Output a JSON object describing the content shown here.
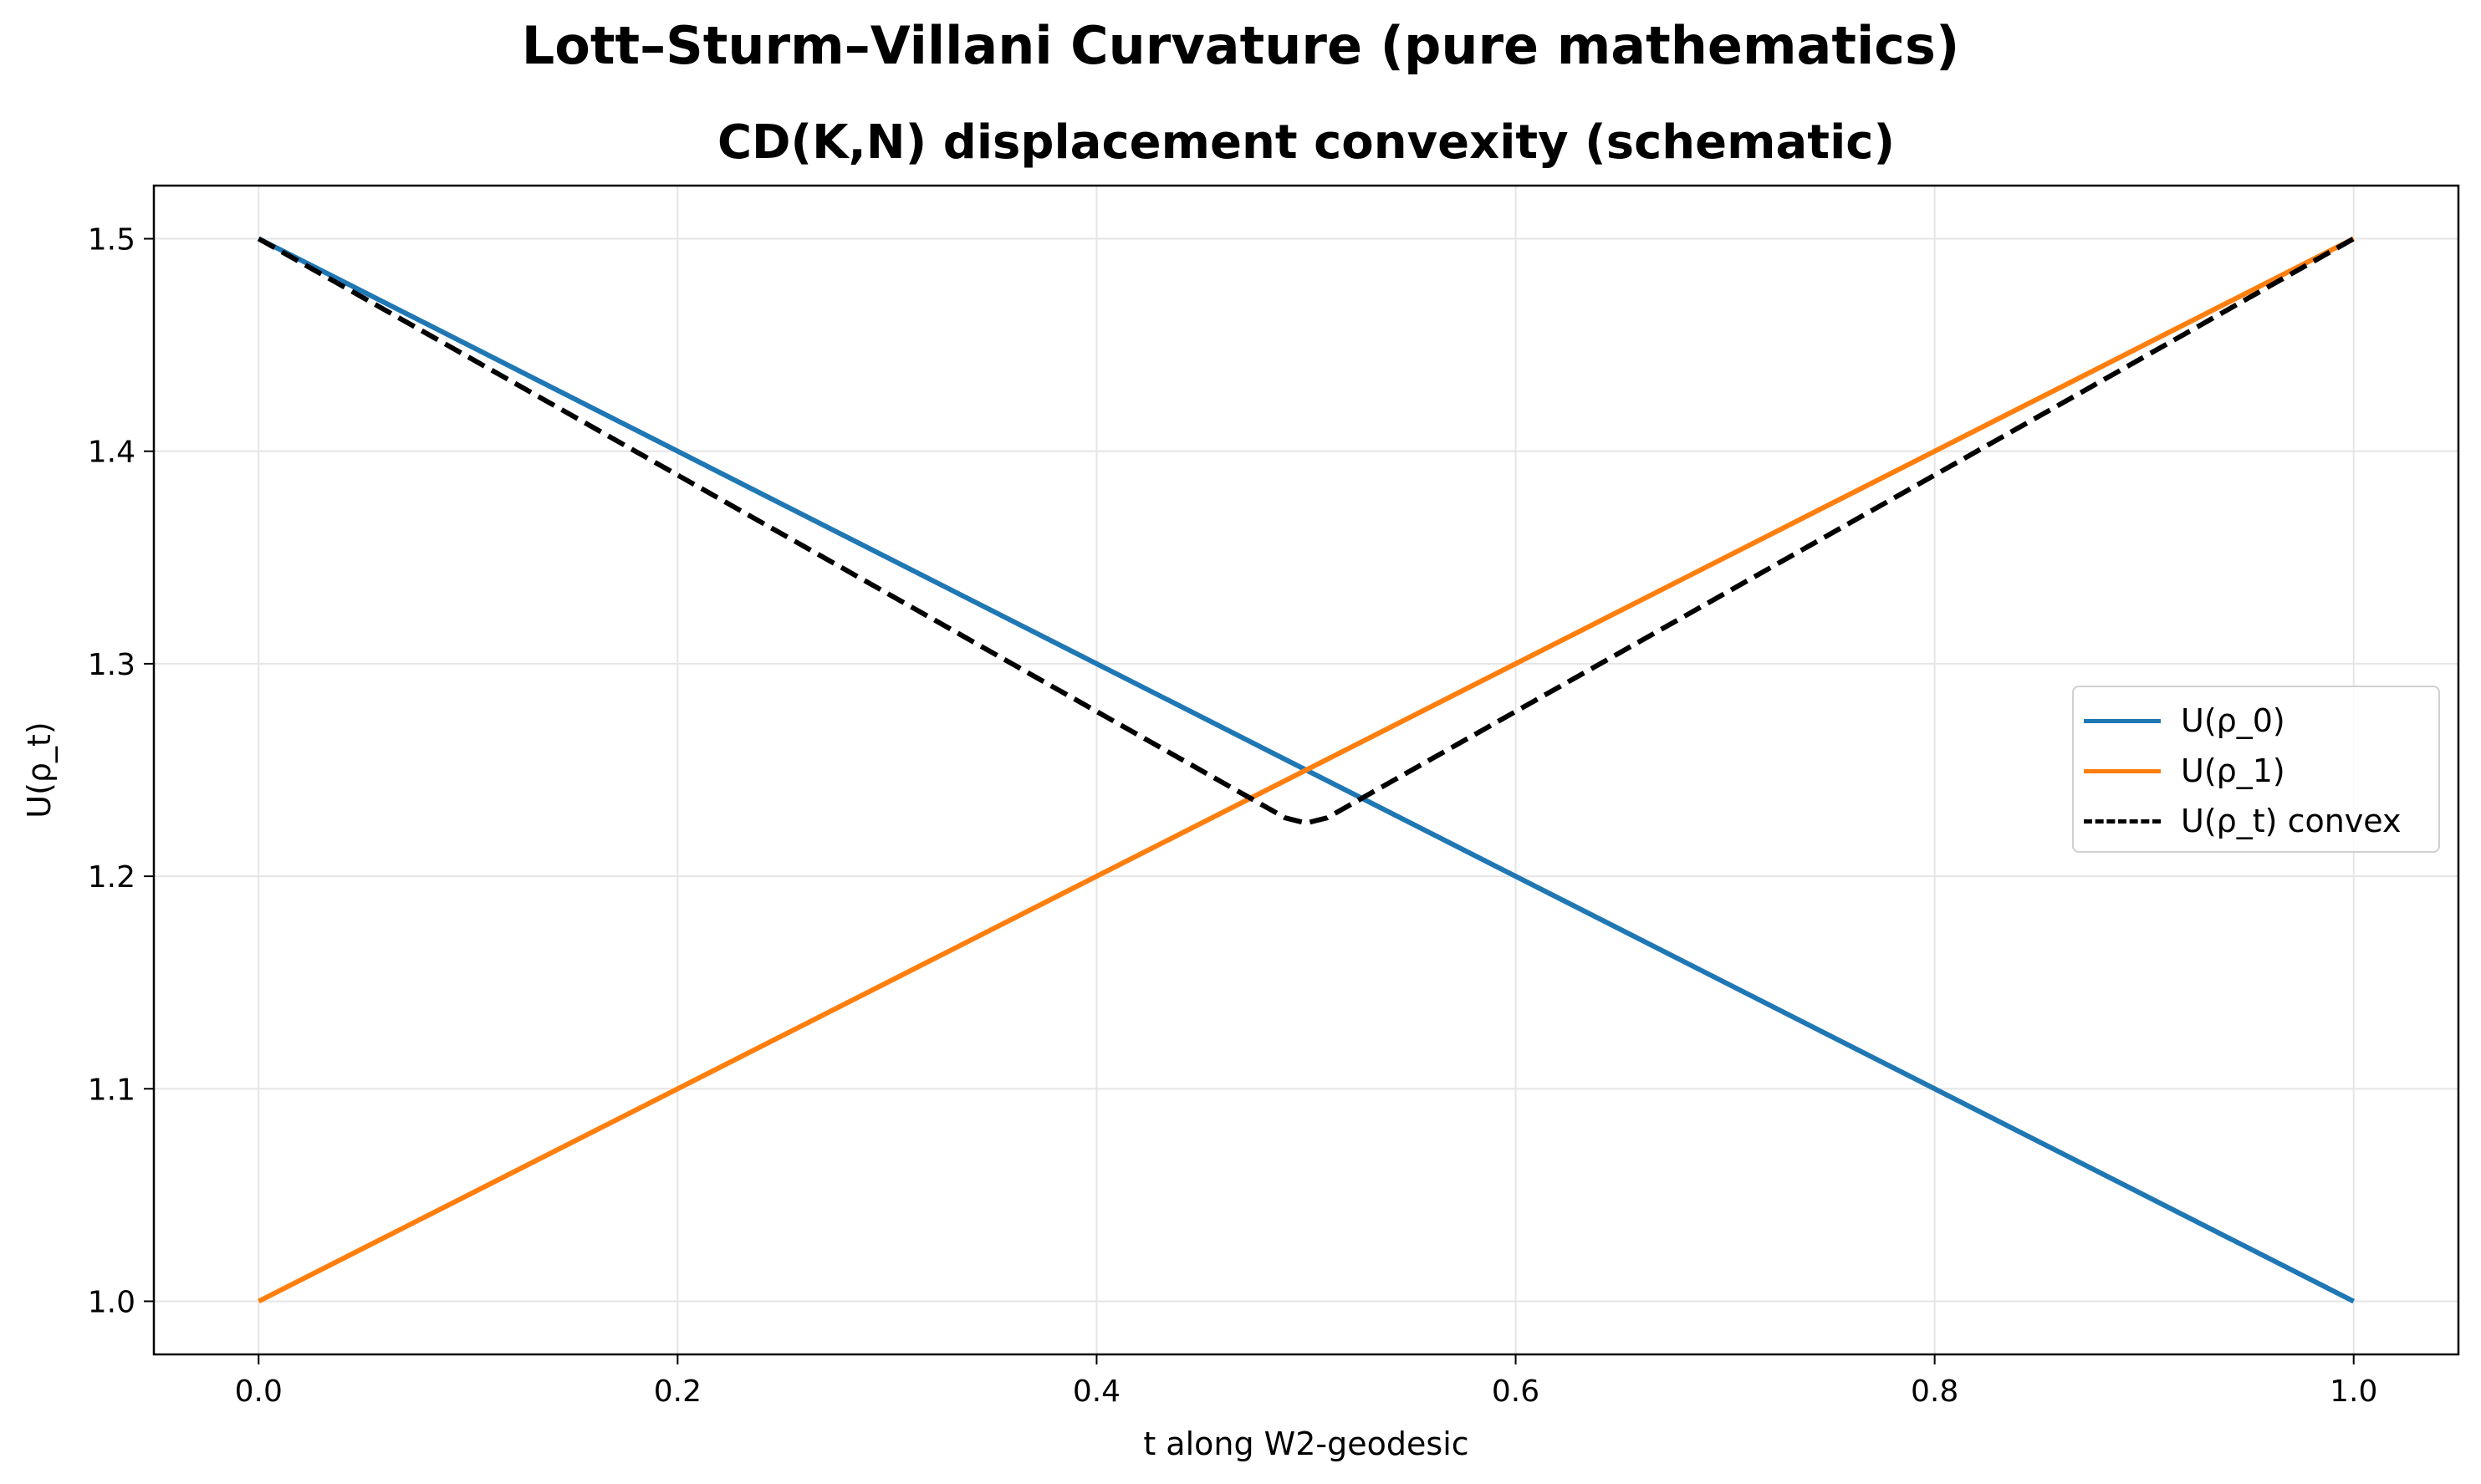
{
  "figure": {
    "suptitle": "Lott–Sturm–Villani Curvature (pure mathematics)"
  },
  "chart_data": {
    "type": "line",
    "title": "CD(K,N) displacement convexity (schematic)",
    "xlabel": "t along W2-geodesic",
    "ylabel": "U(ρ_t)",
    "xlim": [
      -0.05,
      1.05
    ],
    "ylim": [
      0.975,
      1.525
    ],
    "xticks": [
      0.0,
      0.2,
      0.4,
      0.6,
      0.8,
      1.0
    ],
    "xtick_labels": [
      "0.0",
      "0.2",
      "0.4",
      "0.6",
      "0.8",
      "1.0"
    ],
    "yticks": [
      1.0,
      1.1,
      1.2,
      1.3,
      1.4,
      1.5
    ],
    "ytick_labels": [
      "1.0",
      "1.1",
      "1.2",
      "1.3",
      "1.4",
      "1.5"
    ],
    "grid": true,
    "legend_position": "center-right",
    "series": [
      {
        "name": "U(ρ_0)",
        "color": "#1f77b4",
        "style": "solid",
        "x": [
          0.0,
          1.0
        ],
        "y": [
          1.5,
          1.0
        ]
      },
      {
        "name": "U(ρ_1)",
        "color": "#ff7f0e",
        "style": "solid",
        "x": [
          0.0,
          1.0
        ],
        "y": [
          1.0,
          1.5
        ]
      },
      {
        "name": "U(ρ_t) convex",
        "color": "#000000",
        "style": "dashed",
        "x": [
          0.0,
          0.49,
          0.5,
          0.51,
          1.0
        ],
        "y": [
          1.5,
          1.2275,
          1.225,
          1.2275,
          1.5
        ]
      }
    ]
  }
}
